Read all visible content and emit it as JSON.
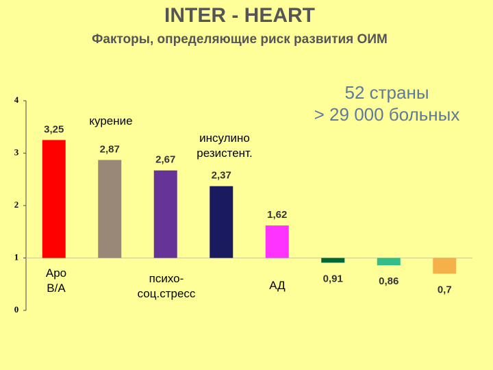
{
  "chart_data": {
    "type": "bar",
    "title": "INTER - HEART",
    "subtitle": "Факторы, определяющие риск развития ОИМ",
    "annotations": [
      "52 страны",
      "> 29 000 больных"
    ],
    "categories": [
      "Apo B/A",
      "курение",
      "психо- соц.стресс",
      "инсулино резистент.",
      "АД",
      null,
      null,
      null
    ],
    "values": [
      3.25,
      2.87,
      2.67,
      2.37,
      1.62,
      0.91,
      0.86,
      0.7
    ],
    "value_labels": [
      "3,25",
      "2,87",
      "2,67",
      "2,37",
      "1,62",
      "0,91",
      "0,86",
      "0,7"
    ],
    "colors": [
      "#ff0000",
      "#998877",
      "#663399",
      "#1a1a5e",
      "#ff33ff",
      "#006633",
      "#33bb88",
      "#f5b04a"
    ],
    "bar_base": 1,
    "ylim": [
      0,
      4
    ],
    "yticks": [
      0,
      1,
      2,
      3,
      4
    ],
    "grid": false
  }
}
